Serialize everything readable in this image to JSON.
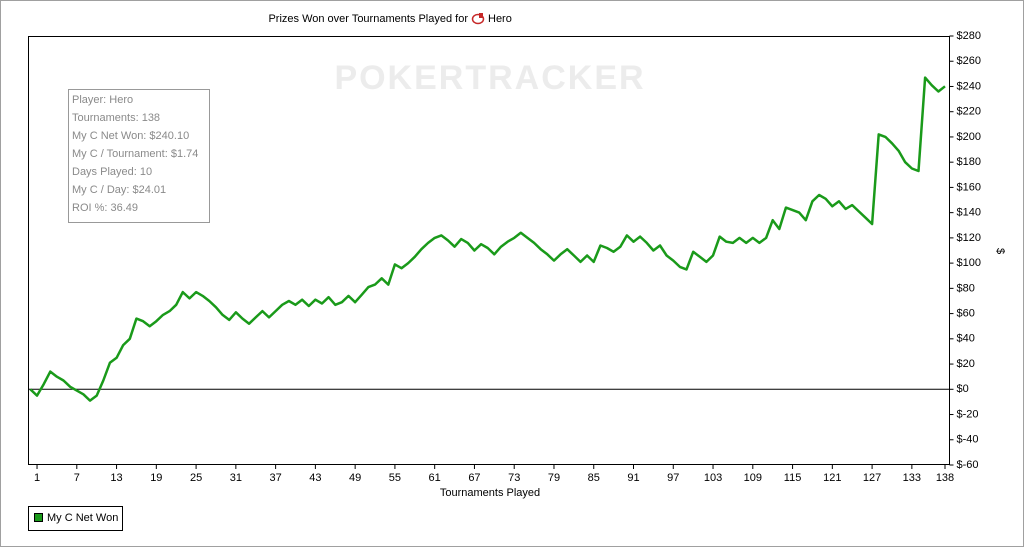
{
  "chart_data": {
    "type": "line",
    "title": "Prizes Won over Tournaments Played for",
    "player": "Hero",
    "watermark": "POKERTRACKER",
    "x_label": "Tournaments Played",
    "y_label": "$",
    "stats": [
      "Player: Hero",
      "Tournaments: 138",
      "My C Net Won: $240.10",
      "My C / Tournament: $1.74",
      "Days Played: 10",
      "My C / Day: $24.01",
      "ROI %: 36.49"
    ],
    "x": [
      0,
      1,
      2,
      3,
      4,
      5,
      6,
      7,
      8,
      9,
      10,
      11,
      12,
      13,
      14,
      15,
      16,
      17,
      18,
      19,
      20,
      21,
      22,
      23,
      24,
      25,
      26,
      27,
      28,
      29,
      30,
      31,
      32,
      33,
      34,
      35,
      36,
      37,
      38,
      39,
      40,
      41,
      42,
      43,
      44,
      45,
      46,
      47,
      48,
      49,
      50,
      51,
      52,
      53,
      54,
      55,
      56,
      57,
      58,
      59,
      60,
      61,
      62,
      63,
      64,
      65,
      66,
      67,
      68,
      69,
      70,
      71,
      72,
      73,
      74,
      75,
      76,
      77,
      78,
      79,
      80,
      81,
      82,
      83,
      84,
      85,
      86,
      87,
      88,
      89,
      90,
      91,
      92,
      93,
      94,
      95,
      96,
      97,
      98,
      99,
      100,
      101,
      102,
      103,
      104,
      105,
      106,
      107,
      108,
      109,
      110,
      111,
      112,
      113,
      114,
      115,
      116,
      117,
      118,
      119,
      120,
      121,
      122,
      123,
      124,
      125,
      126,
      127,
      128,
      129,
      130,
      131,
      132,
      133,
      134,
      135,
      136,
      137,
      138
    ],
    "series": [
      {
        "name": "My C Net Won",
        "color": "#1a9a1a",
        "values": [
          0,
          -5,
          4,
          14,
          10,
          7,
          2,
          -1,
          -4,
          -9,
          -5,
          7,
          21,
          25,
          35,
          40,
          56,
          54,
          50,
          54,
          59,
          62,
          67,
          77,
          72,
          77,
          74,
          70,
          65,
          59,
          55,
          61,
          56,
          52,
          57,
          62,
          57,
          62,
          67,
          70,
          67,
          71,
          66,
          71,
          68,
          73,
          67,
          69,
          74,
          69,
          75,
          81,
          83,
          88,
          83,
          99,
          96,
          100,
          105,
          111,
          116,
          120,
          122,
          118,
          113,
          119,
          116,
          110,
          115,
          112,
          107,
          113,
          117,
          120,
          124,
          120,
          116,
          111,
          107,
          102,
          107,
          111,
          106,
          101,
          106,
          101,
          114,
          112,
          109,
          113,
          122,
          117,
          121,
          116,
          110,
          114,
          106,
          102,
          97,
          95,
          109,
          105,
          101,
          106,
          121,
          117,
          116,
          120,
          116,
          120,
          116,
          120,
          134,
          127,
          144,
          142,
          140,
          134,
          149,
          154,
          151,
          145,
          149,
          143,
          146,
          141,
          136,
          131,
          202,
          200,
          195,
          189,
          180,
          175,
          173,
          247,
          241,
          236,
          240.1
        ]
      }
    ],
    "xlim": [
      0,
      138
    ],
    "xticks": [
      1,
      7,
      13,
      19,
      25,
      31,
      37,
      43,
      49,
      55,
      61,
      67,
      73,
      79,
      85,
      91,
      97,
      103,
      109,
      115,
      121,
      127,
      133,
      138
    ],
    "ylim": [
      -60,
      280
    ],
    "yticks": [
      {
        "value": -60,
        "label": "$-60"
      },
      {
        "value": -40,
        "label": "$-40"
      },
      {
        "value": -20,
        "label": "$-20"
      },
      {
        "value": 0,
        "label": "$0"
      },
      {
        "value": 20,
        "label": "$20"
      },
      {
        "value": 40,
        "label": "$40"
      },
      {
        "value": 60,
        "label": "$60"
      },
      {
        "value": 80,
        "label": "$80"
      },
      {
        "value": 100,
        "label": "$100"
      },
      {
        "value": 120,
        "label": "$120"
      },
      {
        "value": 140,
        "label": "$140"
      },
      {
        "value": 160,
        "label": "$160"
      },
      {
        "value": 180,
        "label": "$180"
      },
      {
        "value": 200,
        "label": "$200"
      },
      {
        "value": 220,
        "label": "$220"
      },
      {
        "value": 240,
        "label": "$240"
      },
      {
        "value": 260,
        "label": "$260"
      },
      {
        "value": 280,
        "label": "$280"
      }
    ],
    "reference_line": 0,
    "grid": false
  }
}
